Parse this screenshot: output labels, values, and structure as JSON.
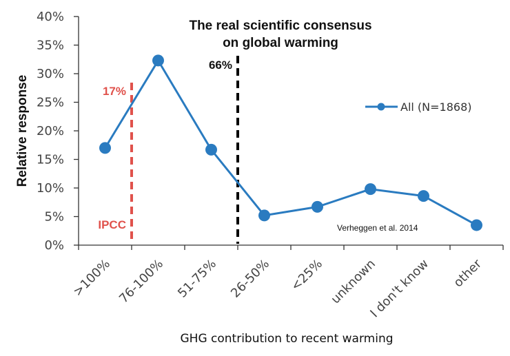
{
  "chart_data": {
    "type": "line",
    "title": "The real scientific consensus on global warming",
    "title_lines": [
      "The real scientific consensus",
      "on global warming"
    ],
    "xlabel": "GHG contribution to recent warming",
    "ylabel": "Relative response",
    "ylim": [
      0,
      40
    ],
    "yticks": [
      0,
      5,
      10,
      15,
      20,
      25,
      30,
      35,
      40
    ],
    "ytick_labels": [
      "0%",
      "5%",
      "10%",
      "15%",
      "20%",
      "25%",
      "30%",
      "35%",
      "40%"
    ],
    "categories": [
      ">100%",
      "76-100%",
      "51-75%",
      "26-50%",
      "<25%",
      "unknown",
      "I don't know",
      "other"
    ],
    "series": [
      {
        "name": "All (N=1868)",
        "color": "#2a7bc0",
        "values": [
          17.0,
          32.3,
          16.7,
          5.2,
          6.7,
          9.8,
          8.6,
          3.5
        ]
      }
    ],
    "legend": {
      "position": "right",
      "label": "All (N=1868)"
    },
    "grid": false,
    "annotations": [
      {
        "type": "vline",
        "between": [
          ">100%",
          "76-100%"
        ],
        "color": "#e0524c",
        "style": "dashed",
        "label_top": "17%",
        "label_bottom": "IPCC"
      },
      {
        "type": "vline",
        "between": [
          "51-75%",
          "26-50%"
        ],
        "color": "#000000",
        "style": "dashed",
        "label_top": "66%"
      },
      {
        "type": "text",
        "text": "Verheggen et al. 2014",
        "position": "bottom-right"
      }
    ]
  }
}
